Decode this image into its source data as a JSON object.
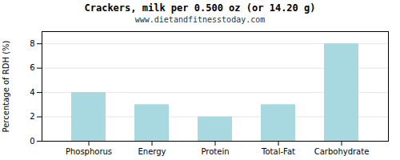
{
  "chart_data": {
    "type": "bar",
    "title": "Crackers, milk per 0.500 oz (or 14.20 g)",
    "subtitle": "www.dietandfitnesstoday.com",
    "categories": [
      "Phosphorus",
      "Energy",
      "Protein",
      "Total-Fat",
      "Carbohydrate"
    ],
    "values": [
      4,
      3,
      2,
      3,
      8
    ],
    "color": "#a8d8e0",
    "ylabel": "Percentage of RDH (%)",
    "ylim": [
      0,
      9
    ],
    "yticks": [
      0,
      2,
      4,
      6,
      8
    ],
    "grid": true
  }
}
